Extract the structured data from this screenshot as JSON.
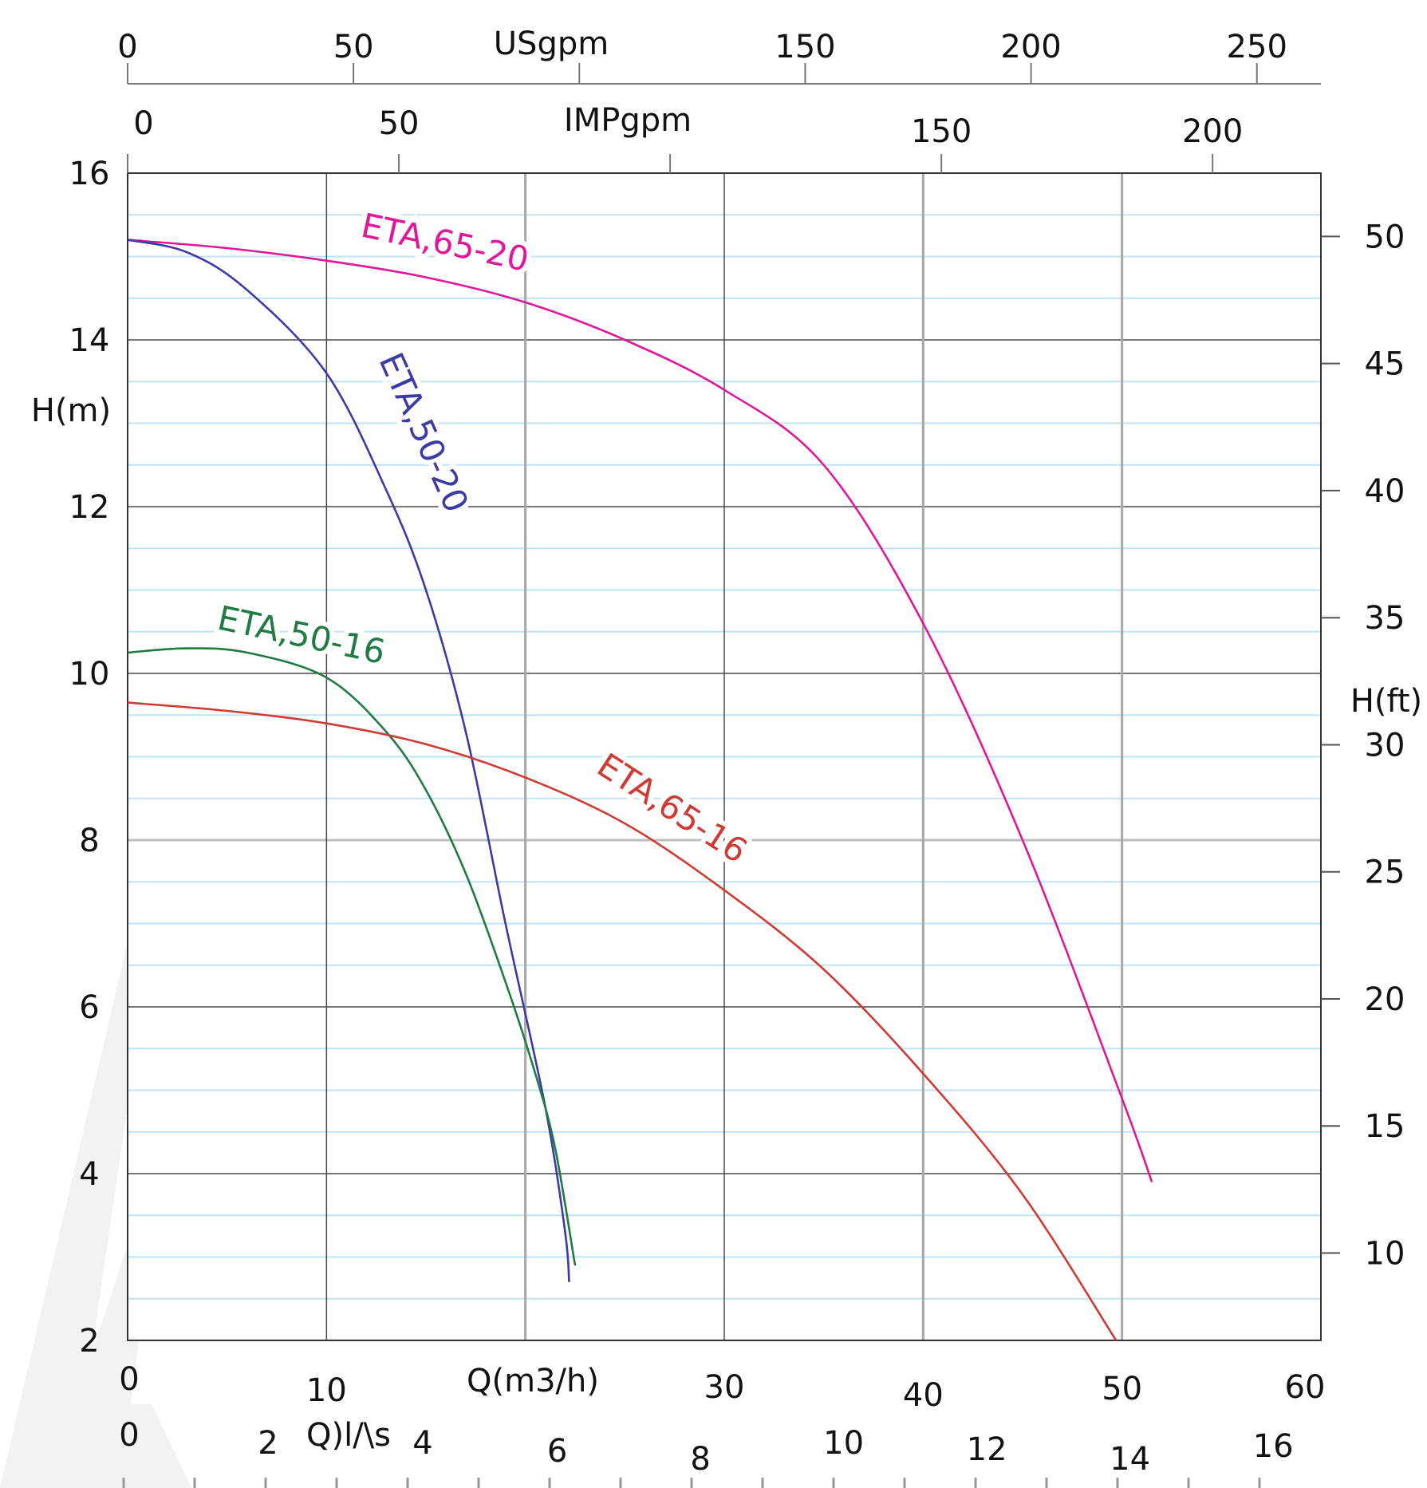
{
  "chart_data": {
    "type": "line",
    "axes": {
      "x_primary": {
        "label": "Q(m3/h)",
        "range": [
          0,
          60
        ],
        "ticks": [
          "0",
          "10",
          "20",
          "30",
          "40",
          "50",
          "60"
        ],
        "tick_labels": [
          "0",
          "10",
          "30",
          "40",
          "50",
          "60"
        ]
      },
      "x_secondary": {
        "label": "Q)l/\\s",
        "range": [
          0,
          16.667
        ],
        "tick_labels": [
          "0",
          "2",
          "4",
          "6",
          "8",
          "10",
          "12",
          "14",
          "16"
        ]
      },
      "x_usgpm": {
        "label": "USgpm",
        "range": [
          0,
          264.2
        ],
        "tick_labels": [
          "0",
          "50",
          "150",
          "200",
          "250"
        ]
      },
      "x_impgpm": {
        "label": "IMPgpm",
        "range": [
          0,
          220
        ],
        "tick_labels": [
          "0",
          "50",
          "150",
          "200"
        ]
      },
      "y_left": {
        "label": "H(m)",
        "range": [
          2,
          16
        ],
        "tick_labels": [
          "2",
          "4",
          "6",
          "8",
          "10",
          "12",
          "14",
          "16"
        ]
      },
      "y_right": {
        "label": "H(ft)",
        "tick_labels": [
          "10",
          "15",
          "20",
          "25",
          "30",
          "35",
          "40",
          "45",
          "50"
        ]
      }
    },
    "grid": true,
    "series": [
      {
        "name": "ETA,65-20",
        "color": "#e0179b",
        "points": [
          [
            0,
            15.2
          ],
          [
            5,
            15.1
          ],
          [
            10,
            14.95
          ],
          [
            15,
            14.75
          ],
          [
            20,
            14.45
          ],
          [
            25,
            14.0
          ],
          [
            30,
            13.4
          ],
          [
            35,
            12.5
          ],
          [
            40,
            10.6
          ],
          [
            45,
            8.0
          ],
          [
            50,
            4.9
          ],
          [
            51.5,
            3.9
          ]
        ]
      },
      {
        "name": "ETA,50-20",
        "color": "#3c3aa5",
        "points": [
          [
            0,
            15.2
          ],
          [
            3,
            15.05
          ],
          [
            6,
            14.6
          ],
          [
            10,
            13.6
          ],
          [
            13,
            12.2
          ],
          [
            15,
            11.0
          ],
          [
            17,
            9.3
          ],
          [
            19,
            7.0
          ],
          [
            21,
            4.8
          ],
          [
            22,
            3.3
          ],
          [
            22.2,
            2.7
          ]
        ]
      },
      {
        "name": "ETA,50-16",
        "color": "#1f7a43",
        "points": [
          [
            0,
            10.25
          ],
          [
            3,
            10.3
          ],
          [
            6,
            10.25
          ],
          [
            10,
            9.95
          ],
          [
            13,
            9.3
          ],
          [
            15,
            8.6
          ],
          [
            17,
            7.6
          ],
          [
            19,
            6.3
          ],
          [
            20.5,
            5.2
          ],
          [
            21.5,
            4.3
          ],
          [
            22.5,
            2.9
          ]
        ]
      },
      {
        "name": "ETA,65-16",
        "color": "#cf3b34",
        "points": [
          [
            0,
            9.65
          ],
          [
            5,
            9.55
          ],
          [
            10,
            9.4
          ],
          [
            15,
            9.15
          ],
          [
            20,
            8.75
          ],
          [
            25,
            8.2
          ],
          [
            30,
            7.4
          ],
          [
            35,
            6.45
          ],
          [
            40,
            5.2
          ],
          [
            45,
            3.75
          ],
          [
            49.7,
            2.0
          ]
        ]
      }
    ]
  }
}
